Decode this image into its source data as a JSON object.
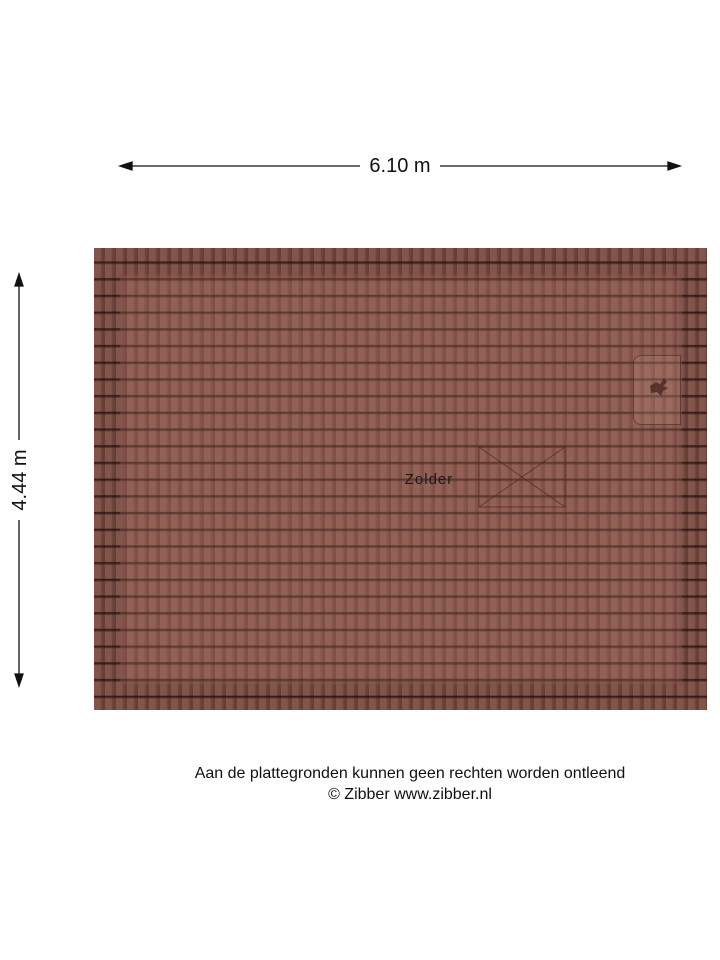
{
  "dimensions": {
    "width": "6.10 m",
    "height": "4.44 m"
  },
  "room": {
    "name": "Zolder"
  },
  "colors": {
    "roof_tile": "#7a4a40",
    "tile_line": "#1e0f0c"
  },
  "footer": {
    "disclaimer": "Aan de plattegronden kunnen geen rechten worden ontleend",
    "copyright": "© Zibber www.zibber.nl"
  }
}
